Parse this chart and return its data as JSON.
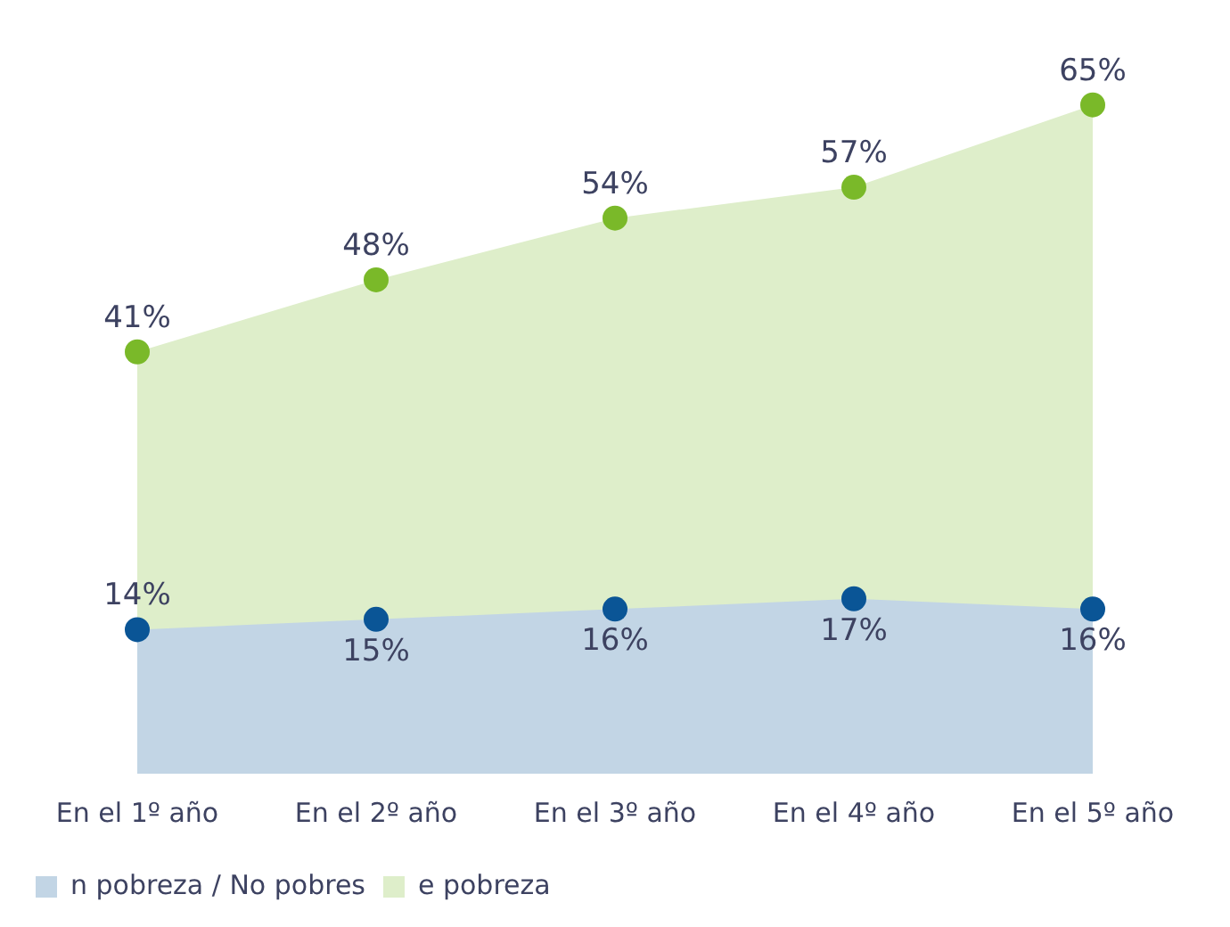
{
  "chart_data": {
    "type": "area",
    "categories": [
      "En el 1º año",
      "En el 2º año",
      "En el 3º año",
      "En el 4º año",
      "En el 5º año"
    ],
    "series": [
      {
        "name": "e pobreza",
        "color": "#7ab929",
        "values": [
          41,
          48,
          54,
          57,
          65
        ],
        "value_labels": [
          "41%",
          "48%",
          "54%",
          "57%",
          "65%"
        ]
      },
      {
        "name": "n pobreza / No pobres",
        "color": "#0a5596",
        "values": [
          14,
          15,
          16,
          17,
          16
        ],
        "value_labels": [
          "14%",
          "15%",
          "16%",
          "17%",
          "16%"
        ]
      }
    ],
    "legend": "bottom left",
    "grid": false,
    "marker": "circle"
  }
}
